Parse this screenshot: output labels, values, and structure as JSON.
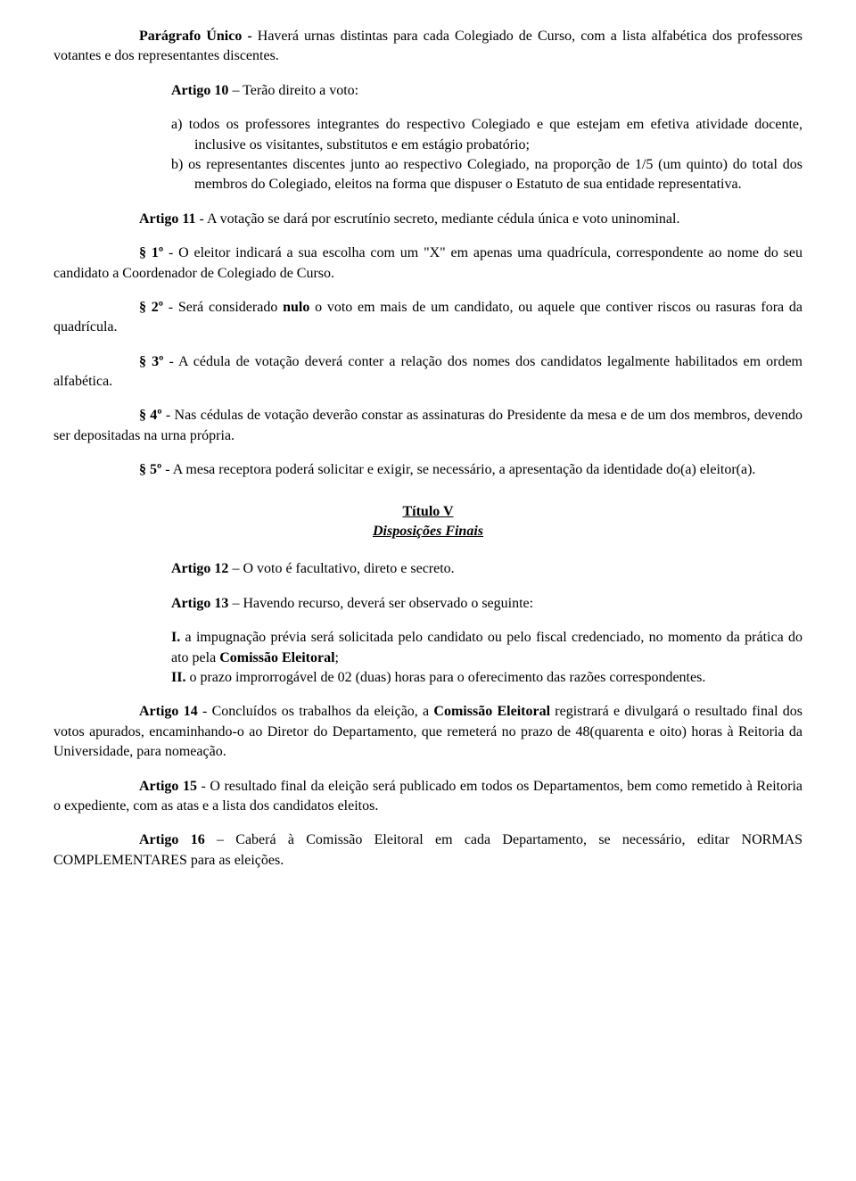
{
  "paragrafo_unico": {
    "label": "Parágrafo Único -",
    "text": " Haverá urnas distintas para cada Colegiado de Curso, com a lista alfabética dos professores votantes e dos representantes discentes."
  },
  "artigo10": {
    "title": "Artigo 10",
    "rest": " – Terão direito a voto:",
    "item_a": {
      "marker": "a)",
      "text": " todos os professores integrantes do respectivo Colegiado e que estejam em efetiva atividade docente, inclusive os visitantes, substitutos e em estágio probatório;"
    },
    "item_b": {
      "marker": "b)",
      "text": " os representantes discentes junto ao respectivo Colegiado, na proporção de 1/5 (um quinto) do total dos membros do Colegiado, eleitos na forma que dispuser o Estatuto de sua entidade representativa."
    }
  },
  "artigo11": {
    "title": "Artigo 11",
    "main": " - A votação se dará por escrutínio secreto, mediante cédula única e voto uninominal.",
    "p1": {
      "label": "§ 1º",
      "text": " - O eleitor indicará a sua escolha com um \"X\" em apenas uma quadrícula, correspondente ao nome do seu candidato a Coordenador de Colegiado de Curso."
    },
    "p2": {
      "label": "§ 2º",
      "pre_bold": " - Será considerado ",
      "bold_word": "nulo",
      "post_bold": " o voto em mais de um candidato, ou aquele que contiver riscos ou rasuras fora da quadrícula."
    },
    "p3": {
      "label": "§ 3º",
      "text": " - A cédula de votação deverá conter a relação dos nomes dos candidatos legalmente habilitados em ordem alfabética."
    },
    "p4": {
      "label": "§ 4º",
      "text": " - Nas cédulas de votação deverão constar as assinaturas do Presidente da mesa e de um dos membros, devendo ser depositadas na urna própria."
    },
    "p5": {
      "label": "§ 5º",
      "text": " - A mesa receptora poderá solicitar e exigir, se necessário, a apresentação da identidade do(a) eleitor(a)."
    }
  },
  "titulo5": {
    "title": "Título V",
    "subtitle": "Disposições Finais"
  },
  "artigo12": {
    "title": "Artigo 12",
    "rest": " – O voto é facultativo, direto e secreto."
  },
  "artigo13": {
    "title": "Artigo 13",
    "rest": " – Havendo recurso, deverá ser observado o seguinte:",
    "i1": {
      "marker": "I.",
      "pre_bold": " a impugnação prévia será solicitada pelo candidato ou pelo fiscal credenciado, no momento da prática do ato pela ",
      "bold_word": "Comissão Eleitoral",
      "post_bold": ";"
    },
    "i2": {
      "marker": "II.",
      "text": " o prazo improrrogável de 02 (duas) horas para o oferecimento das razões correspondentes."
    }
  },
  "artigo14": {
    "title": "Artigo 14",
    "pre_bold": " - Concluídos os trabalhos da eleição, a ",
    "bold_word": "Comissão Eleitoral",
    "post_bold": " registrará e divulgará o resultado final dos votos apurados, encaminhando-o ao Diretor do Departamento, que remeterá no prazo de 48(quarenta e oito) horas à Reitoria da Universidade, para nomeação."
  },
  "artigo15": {
    "title": "Artigo 15",
    "text": " - O resultado final da eleição será publicado em todos os Departamentos, bem como remetido à Reitoria o expediente, com as atas e a lista dos candidatos eleitos."
  },
  "artigo16": {
    "title": "Artigo 16",
    "text": " – Caberá à Comissão Eleitoral em cada Departamento, se necessário, editar NORMAS COMPLEMENTARES para as eleições."
  }
}
